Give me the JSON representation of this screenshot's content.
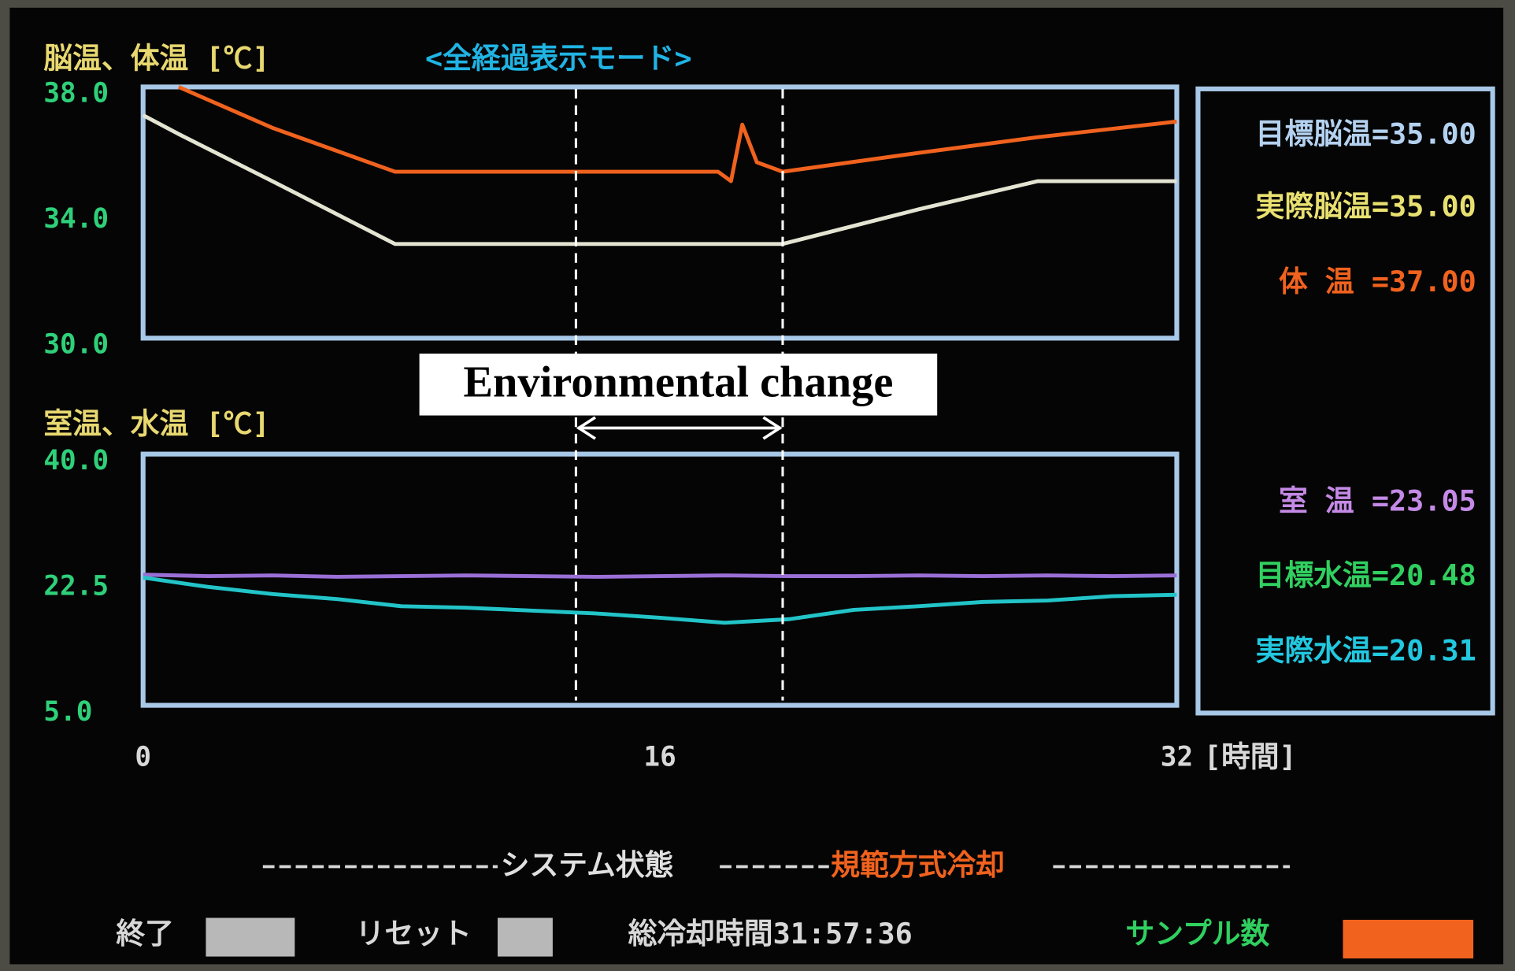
{
  "header": {
    "title": "脳温、体温 [℃]",
    "mode": "<全経過表示モード>",
    "lower_title": "室温、水温 [℃]"
  },
  "chart_data": [
    {
      "type": "line",
      "x": [
        0,
        1.1,
        4,
        7.8,
        13,
        17.8,
        18.2,
        18.55,
        19,
        19.8,
        24,
        27.7,
        32
      ],
      "xlim": [
        0,
        32
      ],
      "ylim": [
        30,
        38
      ],
      "yticks": [
        {
          "value": 38,
          "label": "38.0"
        },
        {
          "value": 34,
          "label": "34.0"
        },
        {
          "value": 30,
          "label": "30.0"
        }
      ],
      "series": [
        {
          "color": "#f0621e",
          "values": [
            null,
            38,
            36.7,
            35.3,
            35.3,
            35.3,
            35.0,
            36.8,
            35.6,
            35.3,
            35.9,
            36.4,
            36.9
          ]
        },
        {
          "color": "#e4e4d2",
          "values": [
            37.1,
            36.5,
            35.0,
            33.0,
            33.0,
            33.0,
            33.0,
            33.0,
            33.0,
            33.0,
            34.1,
            35.0,
            35.0
          ]
        }
      ]
    },
    {
      "type": "line",
      "x": [
        0,
        2,
        4,
        6,
        8,
        10,
        12,
        14,
        16,
        18,
        20,
        22,
        24,
        26,
        28,
        30,
        32
      ],
      "xlim": [
        0,
        32
      ],
      "ylim": [
        5,
        40
      ],
      "xticks": [
        0,
        16,
        32
      ],
      "x_label": "[時間]",
      "yticks": [
        {
          "value": 40,
          "label": "40.0"
        },
        22.5,
        {
          "value": 5,
          "label": "5.0"
        }
      ],
      "series": [
        {
          "color": "#9a6fd6",
          "values": [
            23.2,
            23.0,
            23.1,
            22.9,
            23.0,
            23.1,
            23.0,
            22.9,
            23.0,
            23.1,
            23.0,
            23.0,
            23.1,
            23.0,
            23.1,
            23.0,
            23.1
          ]
        },
        {
          "color": "#22c4c8",
          "values": [
            22.8,
            21.5,
            20.5,
            19.8,
            18.8,
            18.6,
            18.2,
            17.8,
            17.2,
            16.5,
            17.0,
            18.3,
            18.8,
            19.4,
            19.6,
            20.2,
            20.4
          ]
        }
      ]
    }
  ],
  "annotation": {
    "text": "Environmental change",
    "x": [
      13.4,
      19.8
    ]
  },
  "readouts": [
    {
      "text": "目標脳温=35.00",
      "color": "#b4d2f0"
    },
    {
      "text": "実際脳温=35.00",
      "color": "#e8e070"
    },
    {
      "text": "体 温 =37.00",
      "color": "#f0621e"
    },
    {
      "text": "室 温 =23.05",
      "color": "#c48ae6"
    },
    {
      "text": "目標水温=20.48",
      "color": "#30d060"
    },
    {
      "text": "実際水温=20.31",
      "color": "#22c8e0"
    }
  ],
  "status": {
    "label": "システム状態",
    "value": "規範方式冷却"
  },
  "footer": {
    "end": "終了",
    "reset": "リセット",
    "total_time": "総冷却時間31:57:36",
    "samples": "サンプル数"
  }
}
